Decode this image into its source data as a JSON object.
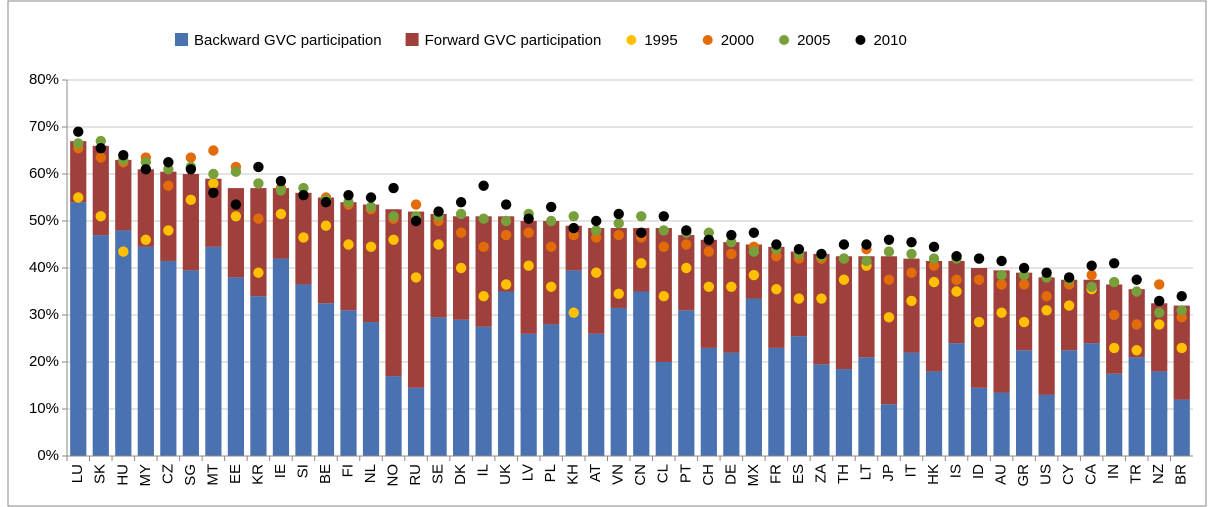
{
  "chart_data": {
    "type": "bar",
    "categories": [
      "LU",
      "SK",
      "HU",
      "MY",
      "CZ",
      "SG",
      "MT",
      "EE",
      "KR",
      "IE",
      "SI",
      "BE",
      "FI",
      "NL",
      "NO",
      "RU",
      "SE",
      "DK",
      "IL",
      "UK",
      "LV",
      "PL",
      "KH",
      "AT",
      "VN",
      "CN",
      "CL",
      "PT",
      "CH",
      "DE",
      "MX",
      "FR",
      "ES",
      "ZA",
      "TH",
      "LT",
      "JP",
      "IT",
      "HK",
      "IS",
      "ID",
      "AU",
      "GR",
      "US",
      "CY",
      "CA",
      "IN",
      "TR",
      "NZ",
      "BR"
    ],
    "series": [
      {
        "name": "Backward GVC participation",
        "type": "bar",
        "color": "#4a72b0",
        "values": [
          54,
          47,
          48,
          44.5,
          41.5,
          39.5,
          44.5,
          38,
          34,
          42,
          36.5,
          32.5,
          31,
          28.5,
          17,
          14.5,
          29.5,
          29,
          27.5,
          35,
          26,
          28,
          39.5,
          26,
          31.5,
          35,
          20,
          31,
          23,
          22,
          33.5,
          23,
          25.5,
          19.5,
          18.5,
          21,
          11,
          22,
          18,
          24,
          14.5,
          13.5,
          22.5,
          13,
          22.5,
          24,
          17.5,
          21,
          18,
          12
        ]
      },
      {
        "name": "Forward GVC participation",
        "type": "bar",
        "color": "#a0403c",
        "values": [
          13,
          19,
          15,
          16.5,
          19,
          20.5,
          14.5,
          19,
          23,
          15,
          19.5,
          22.5,
          23,
          25,
          35.5,
          37.5,
          22,
          22,
          23.5,
          16,
          24,
          22,
          9.5,
          22.5,
          17,
          13.5,
          28.5,
          16,
          23,
          23.5,
          11.5,
          21.5,
          18,
          23.5,
          24,
          21.5,
          31.5,
          20,
          23.5,
          17.5,
          25.5,
          26,
          16.5,
          25,
          15,
          13.5,
          19,
          14.5,
          14.5,
          20
        ]
      },
      {
        "name": "1995",
        "type": "scatter",
        "color": "#ffc000",
        "values": [
          55,
          51,
          43.5,
          46,
          48,
          54.5,
          58,
          51,
          39,
          51.5,
          46.5,
          49,
          45,
          44.5,
          46,
          38,
          45,
          40,
          34,
          36.5,
          40.5,
          36,
          30.5,
          39,
          34.5,
          41,
          34,
          40,
          36,
          36,
          38.5,
          35.5,
          33.5,
          33.5,
          37.5,
          40.5,
          29.5,
          33,
          37,
          35,
          28.5,
          30.5,
          28.5,
          31,
          32,
          35.5,
          23,
          22.5,
          28,
          23
        ]
      },
      {
        "name": "2000",
        "type": "scatter",
        "color": "#e36c0a",
        "values": [
          65.5,
          63.5,
          62.5,
          63.5,
          57.5,
          63.5,
          65,
          61.5,
          50.5,
          57,
          55.5,
          55,
          53.5,
          52.5,
          50.5,
          53.5,
          50,
          47.5,
          44.5,
          47,
          47.5,
          44.5,
          47,
          46.5,
          47,
          46.5,
          44.5,
          45,
          43.5,
          43,
          44.5,
          42.5,
          42,
          42,
          42,
          44,
          37.5,
          39,
          40.5,
          37.5,
          37.5,
          36.5,
          36.5,
          34,
          36.5,
          38.5,
          30,
          28,
          36.5,
          29.5
        ]
      },
      {
        "name": "2005",
        "type": "scatter",
        "color": "#77a03c",
        "values": [
          66.5,
          67,
          63,
          62.5,
          61,
          61.5,
          60,
          60.5,
          58,
          56.5,
          57,
          54.5,
          54,
          53,
          51,
          51,
          51,
          51.5,
          50.5,
          50,
          51.5,
          50,
          51,
          48,
          49.5,
          51,
          48,
          47.5,
          47.5,
          45.5,
          43.5,
          44,
          43,
          42.5,
          42,
          41.5,
          43.5,
          43,
          42,
          42,
          42,
          38.5,
          38.5,
          38,
          37.5,
          36,
          37,
          35,
          30.5,
          31
        ]
      },
      {
        "name": "2010",
        "type": "scatter",
        "color": "#000000",
        "values": [
          69,
          65.5,
          64,
          61,
          62.5,
          61,
          56,
          53.5,
          61.5,
          58.5,
          55.5,
          54,
          55.5,
          55,
          57,
          50,
          52,
          54,
          57.5,
          53.5,
          50.5,
          53,
          48.5,
          50,
          51.5,
          47.5,
          51,
          48,
          46,
          47,
          47.5,
          45,
          44,
          43,
          45,
          45,
          46,
          45.5,
          44.5,
          42.5,
          42,
          41.5,
          40,
          39,
          38,
          40.5,
          41,
          37.5,
          33,
          34
        ]
      }
    ],
    "ylim": [
      0,
      80
    ],
    "yticks": [
      {
        "value": 0,
        "label": "0%"
      },
      {
        "value": 10,
        "label": "10%"
      },
      {
        "value": 20,
        "label": "20%"
      },
      {
        "value": 30,
        "label": "30%"
      },
      {
        "value": 40,
        "label": "40%"
      },
      {
        "value": 50,
        "label": "50%"
      },
      {
        "value": 60,
        "label": "60%"
      },
      {
        "value": 70,
        "label": "70%"
      },
      {
        "value": 80,
        "label": "80%"
      }
    ],
    "grid": true,
    "legend": "top"
  }
}
